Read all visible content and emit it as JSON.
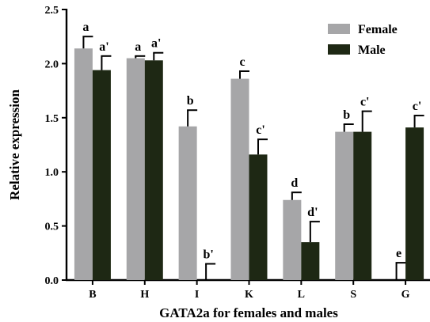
{
  "chart_data": {
    "type": "bar",
    "xlabel": "GATA2a for females and males",
    "ylabel": "Relative expression",
    "ylim": [
      0,
      2.5
    ],
    "yticks": [
      "0.0",
      "0.5",
      "1.0",
      "1.5",
      "2.0",
      "2.5"
    ],
    "ytick_values": [
      0,
      0.5,
      1.0,
      1.5,
      2.0,
      2.5
    ],
    "categories": [
      "B",
      "H",
      "I",
      "K",
      "L",
      "S",
      "G"
    ],
    "series": [
      {
        "name": "Female",
        "color": "#a6a6a8",
        "values": [
          2.14,
          2.05,
          1.42,
          1.86,
          0.74,
          1.37,
          0.0
        ],
        "errors": [
          0.11,
          0.02,
          0.15,
          0.07,
          0.07,
          0.07,
          0.16
        ],
        "sig_labels": [
          "a",
          "a",
          "b",
          "c",
          "d",
          "b",
          "e"
        ]
      },
      {
        "name": "Male",
        "color": "#1e2814",
        "values": [
          1.94,
          2.03,
          0.0,
          1.16,
          0.35,
          1.37,
          1.41
        ],
        "errors": [
          0.13,
          0.07,
          0.15,
          0.14,
          0.19,
          0.19,
          0.11
        ],
        "sig_labels": [
          "a'",
          "a'",
          "b'",
          "c'",
          "d'",
          "c'",
          "c'"
        ]
      }
    ],
    "legend_position": "top-right",
    "grid": false
  }
}
